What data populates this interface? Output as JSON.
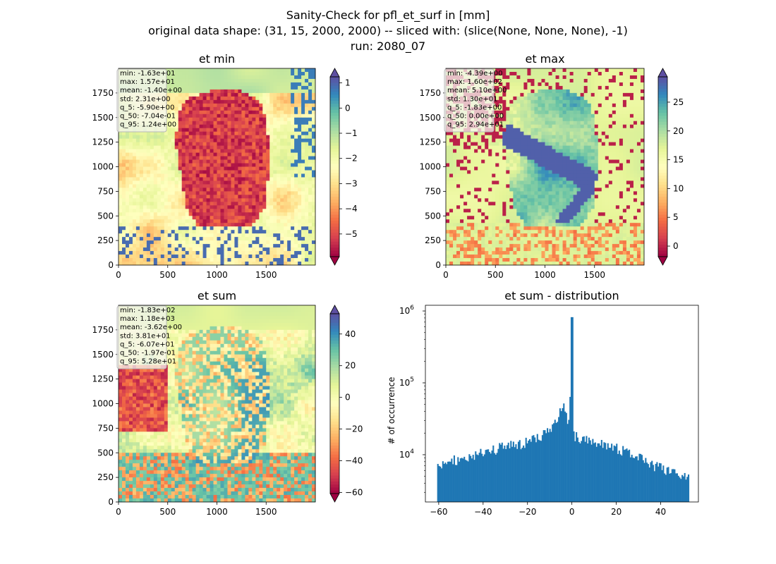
{
  "figure": {
    "title_lines": [
      "Sanity-Check for pfl_et_surf in [mm]",
      "original data shape: (31, 15, 2000, 2000) -- sliced with: (slice(None, None, None), -1)",
      "run: 2080_07"
    ]
  },
  "chart_data": [
    {
      "type": "heatmap",
      "title": "et min",
      "xlim": [
        0,
        2000
      ],
      "ylim": [
        0,
        2000
      ],
      "xticks": [
        0,
        500,
        1000,
        1500
      ],
      "yticks": [
        0,
        250,
        500,
        750,
        1000,
        1250,
        1500,
        1750
      ],
      "colormap": "Spectral",
      "colorbar": {
        "range": [
          -5.9,
          1.24
        ],
        "ticks": [
          1,
          0,
          -1,
          -2,
          -3,
          -4,
          -5
        ],
        "ticklabels": [
          "1",
          "0",
          "−1",
          "−2",
          "−3",
          "−4",
          "−5"
        ],
        "extend": "both"
      },
      "stats": [
        "min: -1.63e+01",
        "max: 1.57e+01",
        "mean: -1.40e+00",
        "std: 2.31e+00",
        "q_5: -5.90e+00",
        "q_50: -7.04e-01",
        "q_95: 1.24e+00"
      ]
    },
    {
      "type": "heatmap",
      "title": "et max",
      "xlim": [
        0,
        2000
      ],
      "ylim": [
        0,
        2000
      ],
      "xticks": [
        0,
        500,
        1000,
        1500
      ],
      "yticks": [
        0,
        250,
        500,
        750,
        1000,
        1250,
        1500,
        1750
      ],
      "colormap": "Spectral",
      "colorbar": {
        "range": [
          -1.83,
          29.4
        ],
        "ticks": [
          25,
          20,
          15,
          10,
          5,
          0
        ],
        "ticklabels": [
          "25",
          "20",
          "15",
          "10",
          "5",
          "0"
        ],
        "extend": "both"
      },
      "stats": [
        "min: -4.39e+00",
        "max: 1.60e+02",
        "mean: 5.10e+00",
        "std: 1.30e+01",
        "q_5: -1.83e+00",
        "q_50: 0.00e+00",
        "q_95: 2.94e+01"
      ]
    },
    {
      "type": "heatmap",
      "title": "et sum",
      "xlim": [
        0,
        2000
      ],
      "ylim": [
        0,
        2000
      ],
      "xticks": [
        0,
        500,
        1000,
        1500
      ],
      "yticks": [
        0,
        250,
        500,
        750,
        1000,
        1250,
        1500,
        1750
      ],
      "colormap": "Spectral",
      "colorbar": {
        "range": [
          -60.7,
          52.8
        ],
        "ticks": [
          40,
          20,
          0,
          -20,
          -40,
          -60
        ],
        "ticklabels": [
          "40",
          "20",
          "0",
          "−20",
          "−40",
          "−60"
        ],
        "extend": "both"
      },
      "stats": [
        "min: -1.83e+02",
        "max: 1.18e+03",
        "mean: -3.62e+00",
        "std: 3.81e+01",
        "q_5: -6.07e+01",
        "q_50: -1.97e-01",
        "q_95: 5.28e+01"
      ]
    },
    {
      "type": "bar",
      "title": "et sum - distribution",
      "ylabel": "# of occurrence",
      "xlim": [
        -66,
        57
      ],
      "xticks": [
        -60,
        -40,
        -20,
        0,
        20,
        40
      ],
      "xticklabels": [
        "−60",
        "−40",
        "−20",
        "0",
        "20",
        "40"
      ],
      "ylog": true,
      "ylim": [
        2200,
        1200000
      ],
      "yticks": [
        10000,
        100000,
        1000000
      ],
      "color": "#1f77b4",
      "bins": {
        "start": -60.7,
        "end": 52.8,
        "count": 200
      },
      "profile": [
        [
          -60.7,
          6000
        ],
        [
          -60,
          7000
        ],
        [
          -50,
          9000
        ],
        [
          -40,
          11000
        ],
        [
          -30,
          13000
        ],
        [
          -20,
          15000
        ],
        [
          -15,
          17000
        ],
        [
          -10,
          22000
        ],
        [
          -7,
          30000
        ],
        [
          -5,
          45000
        ],
        [
          -4,
          50000
        ],
        [
          -3,
          38000
        ],
        [
          -2,
          30000
        ],
        [
          -1,
          25000
        ],
        [
          -0.3,
          820000
        ],
        [
          0.3,
          20000
        ],
        [
          1,
          18000
        ],
        [
          3,
          17500
        ],
        [
          10,
          16000
        ],
        [
          20,
          12500
        ],
        [
          30,
          9000
        ],
        [
          40,
          6500
        ],
        [
          52.8,
          4500
        ]
      ]
    }
  ]
}
